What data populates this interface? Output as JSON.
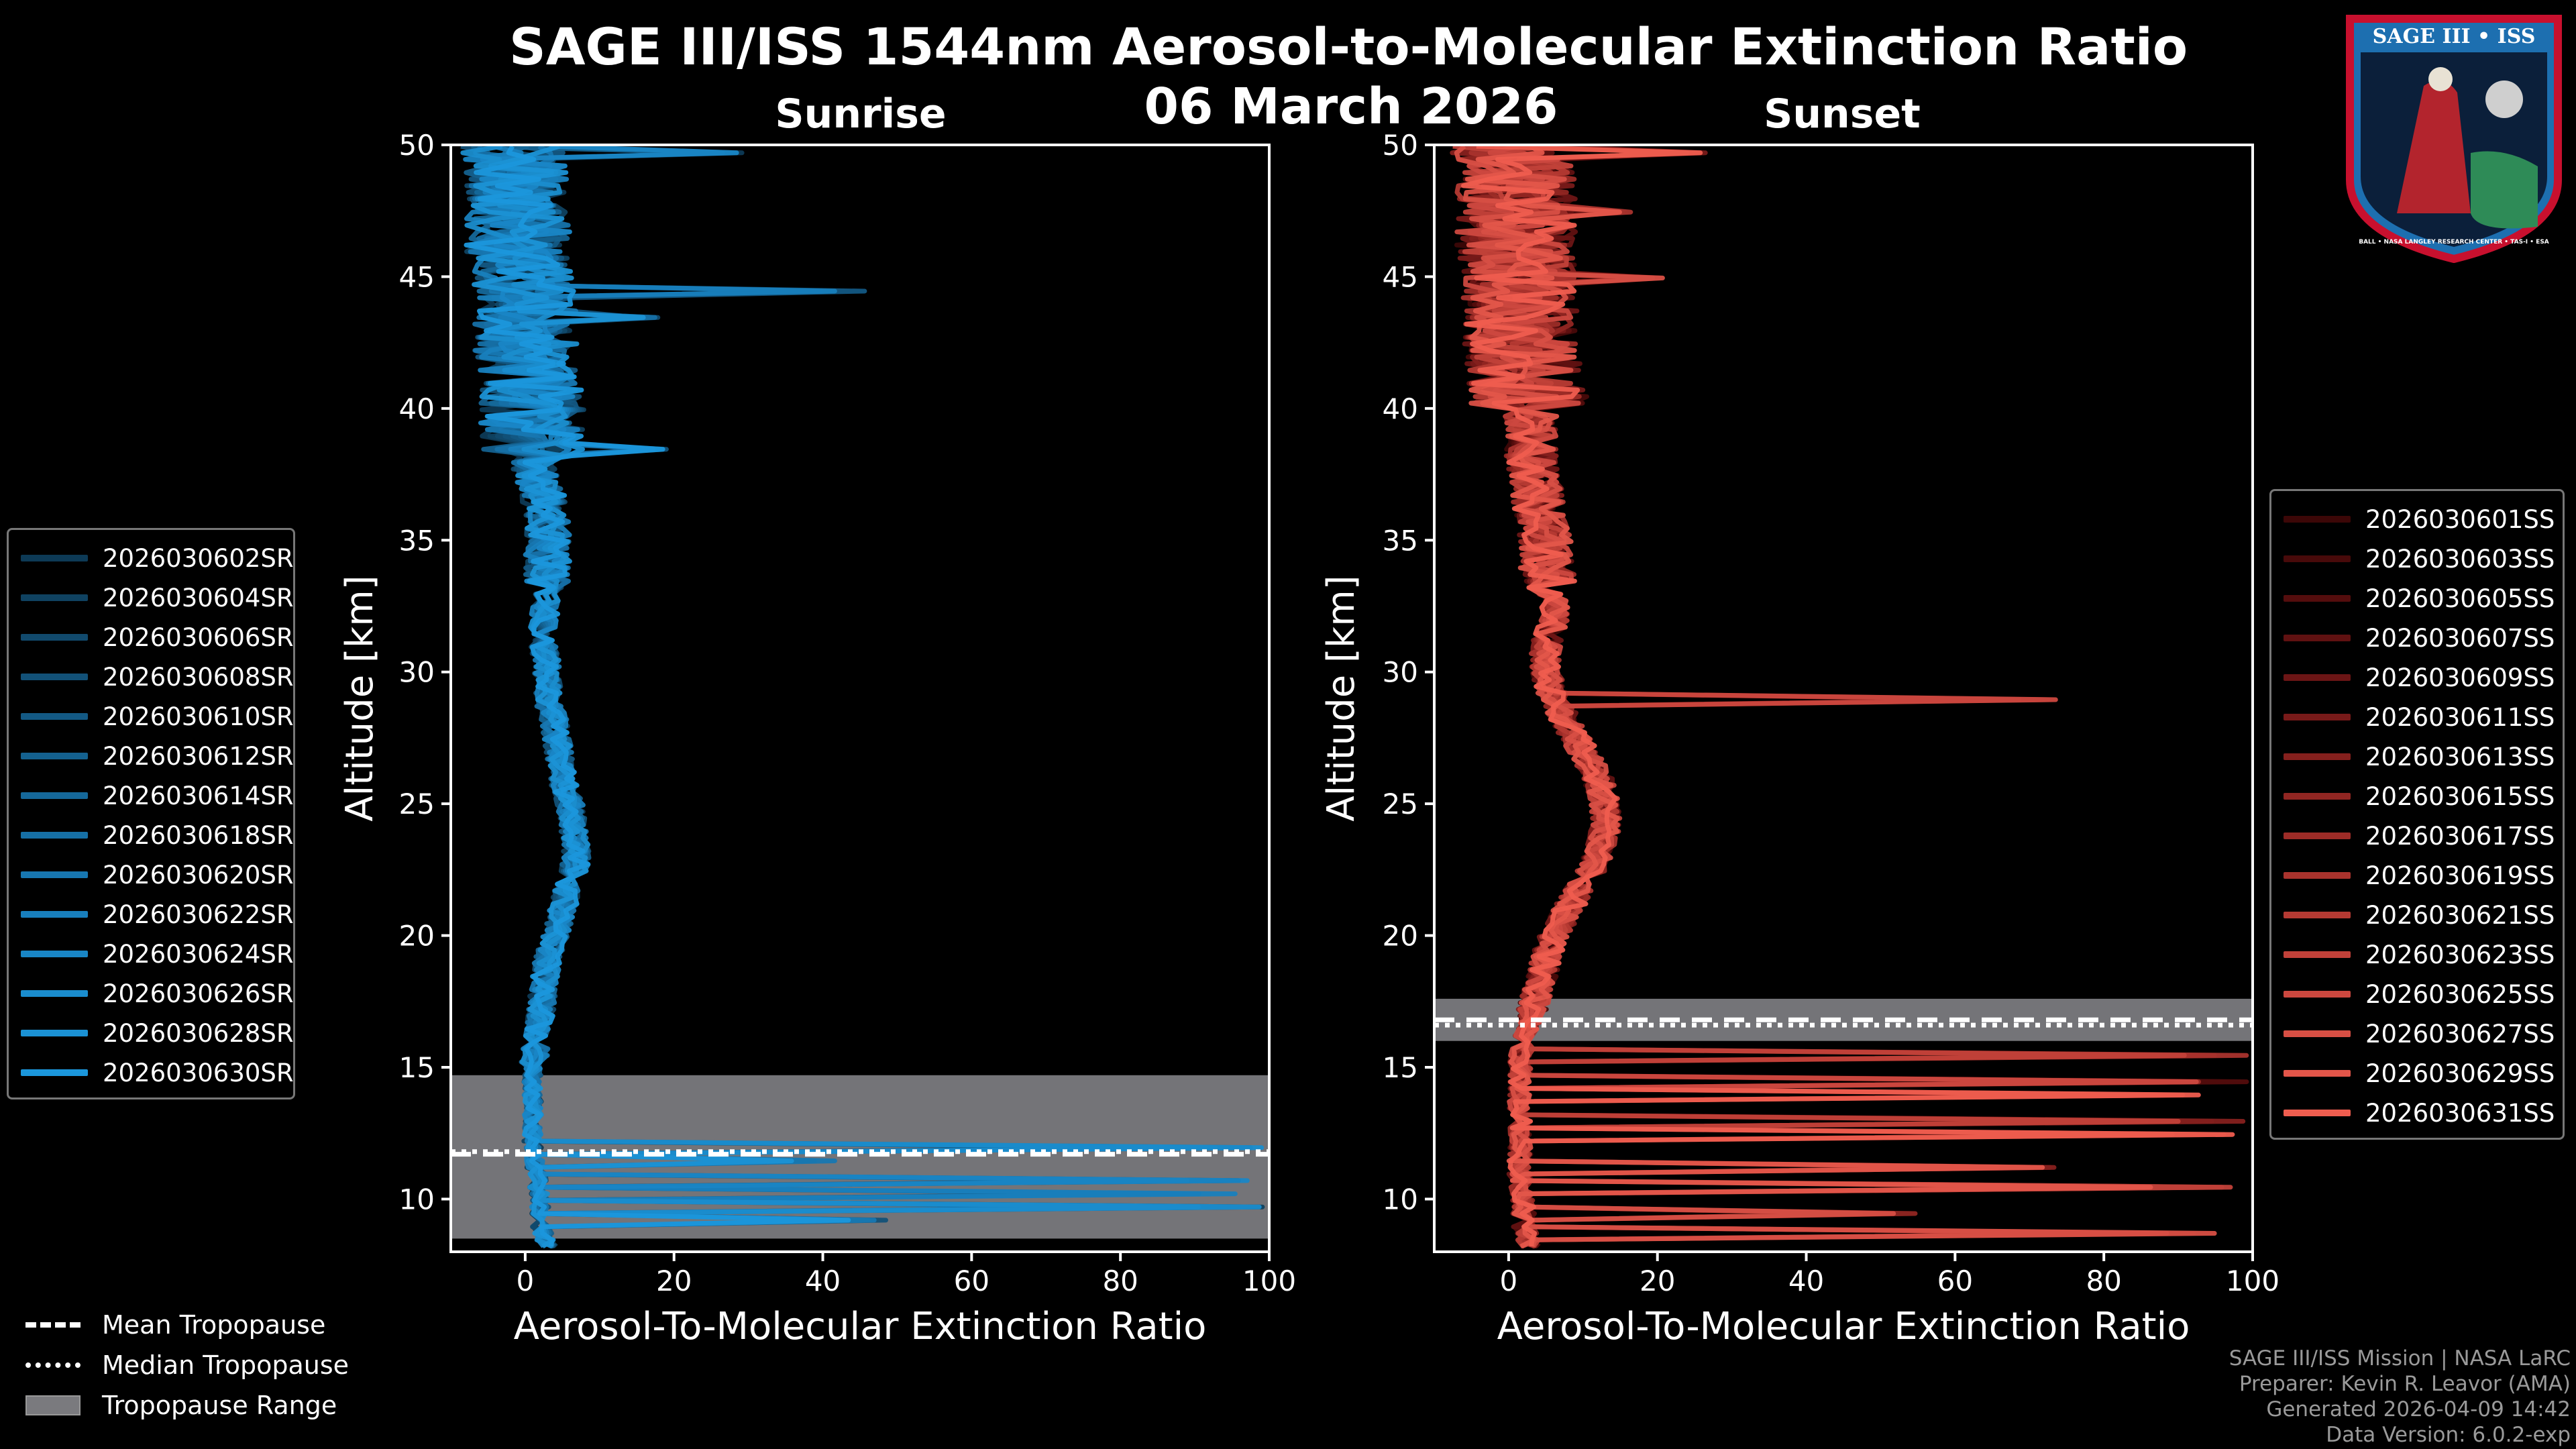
{
  "title": {
    "line1": "SAGE III/ISS 1544nm Aerosol-to-Molecular Extinction Ratio",
    "line2": "06 March 2026"
  },
  "logo": {
    "top_text": "SAGE III • ISS",
    "ring_text": "BALL • NASA LANGLEY RESEARCH CENTER • TAS-I • ESA"
  },
  "colors": {
    "sunrise": "#1b8fcf",
    "sunset": "#ef5a46",
    "tropopause_range": "#7a7a7e"
  },
  "legend_bottom": {
    "mean": "Mean Tropopause",
    "median": "Median Tropopause",
    "range": "Tropopause Range"
  },
  "footer": {
    "line1": "SAGE III/ISS Mission | NASA LaRC",
    "line2": "Preparer: Kevin R. Leavor (AMA)",
    "line3": "Generated 2026-04-09 14:42",
    "line4": "Data Version: 6.0.2-exp"
  },
  "chart_data": [
    {
      "type": "line",
      "title": "Sunrise",
      "xlabel": "Aerosol-To-Molecular Extinction Ratio",
      "ylabel": "Altitude [km]",
      "xlim": [
        -10,
        100
      ],
      "ylim": [
        8,
        50
      ],
      "xticks": [
        0,
        20,
        40,
        60,
        80,
        100
      ],
      "yticks": [
        10,
        15,
        20,
        25,
        30,
        35,
        40,
        45,
        50
      ],
      "grid": false,
      "tropopause": {
        "mean": 11.7,
        "median": 11.8,
        "min": 8.5,
        "max": 14.7
      },
      "series_names": [
        "2026030602SR",
        "2026030604SR",
        "2026030606SR",
        "2026030608SR",
        "2026030610SR",
        "2026030612SR",
        "2026030614SR",
        "2026030618SR",
        "2026030620SR",
        "2026030622SR",
        "2026030624SR",
        "2026030626SR",
        "2026030628SR",
        "2026030630SR"
      ],
      "series_colors": [
        "#0d3a56",
        "#0f4261",
        "#114a6d",
        "#125178",
        "#135984",
        "#14618f",
        "#15689a",
        "#1670a6",
        "#1777b1",
        "#187fbd",
        "#1986c6",
        "#1a8dce",
        "#1b92d5",
        "#1b97dc"
      ],
      "spikes": [
        {
          "alt": 49.7,
          "x": 30
        },
        {
          "alt": 44.5,
          "x": 46
        },
        {
          "alt": 38.5,
          "x": 20
        },
        {
          "alt": 43.5,
          "x": 18
        },
        {
          "alt": 12.0,
          "x": 100
        },
        {
          "alt": 10.8,
          "x": 100
        },
        {
          "alt": 10.2,
          "x": 100
        },
        {
          "alt": 9.2,
          "x": 50
        },
        {
          "alt": 11.5,
          "x": 42
        },
        {
          "alt": 9.8,
          "x": 100
        }
      ]
    },
    {
      "type": "line",
      "title": "Sunset",
      "xlabel": "Aerosol-To-Molecular Extinction Ratio",
      "ylabel": "Altitude [km]",
      "xlim": [
        -10,
        100
      ],
      "ylim": [
        8,
        50
      ],
      "xticks": [
        0,
        20,
        40,
        60,
        80,
        100
      ],
      "yticks": [
        10,
        15,
        20,
        25,
        30,
        35,
        40,
        45,
        50
      ],
      "grid": false,
      "tropopause": {
        "mean": 16.8,
        "median": 16.6,
        "min": 16.0,
        "max": 17.6
      },
      "series_names": [
        "2026030601SS",
        "2026030603SS",
        "2026030605SS",
        "2026030607SS",
        "2026030609SS",
        "2026030611SS",
        "2026030613SS",
        "2026030615SS",
        "2026030617SS",
        "2026030619SS",
        "2026030621SS",
        "2026030623SS",
        "2026030625SS",
        "2026030627SS",
        "2026030629SS",
        "2026030631SS"
      ],
      "series_colors": [
        "#3c0707",
        "#480a0a",
        "#540d0d",
        "#601111",
        "#6c1515",
        "#781a19",
        "#85201d",
        "#912622",
        "#9d2c27",
        "#a9332d",
        "#b53a33",
        "#c14139",
        "#cc483f",
        "#d74f44",
        "#e3564a",
        "#ef5d4f"
      ],
      "spikes": [
        {
          "alt": 49.7,
          "x": 28
        },
        {
          "alt": 47.5,
          "x": 17
        },
        {
          "alt": 45.0,
          "x": 21
        },
        {
          "alt": 29.0,
          "x": 78
        },
        {
          "alt": 13.0,
          "x": 100
        },
        {
          "alt": 12.5,
          "x": 100
        },
        {
          "alt": 11.2,
          "x": 75
        },
        {
          "alt": 9.5,
          "x": 55
        },
        {
          "alt": 14.5,
          "x": 100
        },
        {
          "alt": 15.5,
          "x": 100
        },
        {
          "alt": 14.0,
          "x": 100
        },
        {
          "alt": 10.5,
          "x": 100
        },
        {
          "alt": 8.8,
          "x": 100
        }
      ]
    }
  ]
}
